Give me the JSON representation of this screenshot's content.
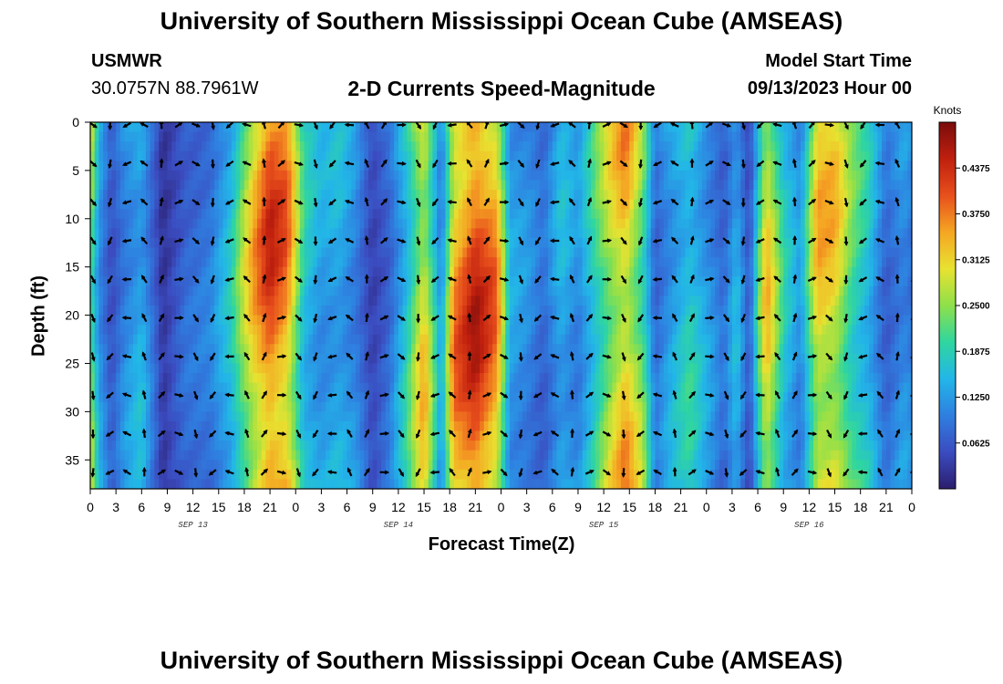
{
  "header": {
    "title": "University of Southern Mississippi Ocean Cube (AMSEAS)",
    "station": "USMWR",
    "coords": "30.0757N  88.7961W",
    "subtitle": "2-D Currents Speed-Magnitude",
    "model_label": "Model Start Time",
    "model_time": "09/13/2023 Hour 00"
  },
  "footer": {
    "title": "University of Southern Mississippi Ocean Cube (AMSEAS)"
  },
  "chart_data": {
    "type": "heatmap",
    "title": "2-D Currents Speed-Magnitude",
    "xlabel": "Forecast Time(Z)",
    "ylabel": "Depth (ft)",
    "x_ticks": [
      "0",
      "3",
      "6",
      "9",
      "12",
      "15",
      "18",
      "21",
      "0",
      "3",
      "6",
      "9",
      "12",
      "15",
      "18",
      "21",
      "0",
      "3",
      "6",
      "9",
      "12",
      "15",
      "18",
      "21",
      "0",
      "3",
      "6",
      "9",
      "12",
      "15",
      "18",
      "21",
      "0"
    ],
    "x_day_labels": [
      {
        "label": "SEP 13",
        "hour": 12
      },
      {
        "label": "SEP 14",
        "hour": 36
      },
      {
        "label": "SEP 15",
        "hour": 60
      },
      {
        "label": "SEP 16",
        "hour": 84
      }
    ],
    "xlim_hours": [
      0,
      96
    ],
    "y_ticks": [
      0,
      5,
      10,
      15,
      20,
      25,
      30,
      35
    ],
    "ylim_ft": [
      0,
      38
    ],
    "colorbar": {
      "label": "Knots",
      "range": [
        0,
        0.5
      ],
      "ticks": [
        "0.4375",
        "0.3750",
        "0.3125",
        "0.2500",
        "0.1875",
        "0.1250",
        "0.0625"
      ],
      "tick_values": [
        0.4375,
        0.375,
        0.3125,
        0.25,
        0.1875,
        0.125,
        0.0625
      ],
      "colors": [
        "#2b1e6e",
        "#3b4cc0",
        "#2f7fe0",
        "#22b6e8",
        "#2fd6a0",
        "#8ee04a",
        "#e8e230",
        "#f5a623",
        "#e8501c",
        "#c0200e",
        "#7a0c0c"
      ]
    },
    "arrow_depths_ft": [
      0,
      4,
      8,
      12,
      16,
      20,
      24,
      28,
      32,
      36
    ],
    "arrow_step_hours": 2,
    "speed_profile_by_hour": [
      {
        "hour": 0,
        "speed": 0.3
      },
      {
        "hour": 1,
        "speed": 0.15
      },
      {
        "hour": 2.5,
        "speed": 0.07
      },
      {
        "hour": 4,
        "speed": 0.13
      },
      {
        "hour": 6,
        "speed": 0.17
      },
      {
        "hour": 8.5,
        "speed": 0.03
      },
      {
        "hour": 11,
        "speed": 0.09
      },
      {
        "hour": 14,
        "speed": 0.11
      },
      {
        "hour": 16.5,
        "speed": 0.19
      },
      {
        "hour": 19,
        "speed": 0.36
      },
      {
        "hour": 21,
        "speed": 0.46
      },
      {
        "hour": 23,
        "speed": 0.41
      },
      {
        "hour": 25,
        "speed": 0.2
      },
      {
        "hour": 27,
        "speed": 0.15
      },
      {
        "hour": 29,
        "speed": 0.17
      },
      {
        "hour": 31,
        "speed": 0.13
      },
      {
        "hour": 33,
        "speed": 0.05
      },
      {
        "hour": 35,
        "speed": 0.1
      },
      {
        "hour": 37,
        "speed": 0.21
      },
      {
        "hour": 39,
        "speed": 0.36
      },
      {
        "hour": 41,
        "speed": 0.13
      },
      {
        "hour": 42.5,
        "speed": 0.4
      },
      {
        "hour": 45,
        "speed": 0.48
      },
      {
        "hour": 47.5,
        "speed": 0.4
      },
      {
        "hour": 49,
        "speed": 0.15
      },
      {
        "hour": 51,
        "speed": 0.13
      },
      {
        "hour": 53,
        "speed": 0.09
      },
      {
        "hour": 55,
        "speed": 0.17
      },
      {
        "hour": 57,
        "speed": 0.13
      },
      {
        "hour": 59,
        "speed": 0.23
      },
      {
        "hour": 61,
        "speed": 0.33
      },
      {
        "hour": 62.5,
        "speed": 0.39
      },
      {
        "hour": 64.5,
        "speed": 0.28
      },
      {
        "hour": 66,
        "speed": 0.1
      },
      {
        "hour": 68,
        "speed": 0.16
      },
      {
        "hour": 70,
        "speed": 0.21
      },
      {
        "hour": 72,
        "speed": 0.15
      },
      {
        "hour": 74,
        "speed": 0.09
      },
      {
        "hour": 75.5,
        "speed": 0.17
      },
      {
        "hour": 77,
        "speed": 0.06
      },
      {
        "hour": 79,
        "speed": 0.36
      },
      {
        "hour": 81,
        "speed": 0.2
      },
      {
        "hour": 83,
        "speed": 0.13
      },
      {
        "hour": 85,
        "speed": 0.36
      },
      {
        "hour": 87,
        "speed": 0.35
      },
      {
        "hour": 89,
        "speed": 0.25
      },
      {
        "hour": 91,
        "speed": 0.19
      },
      {
        "hour": 93,
        "speed": 0.09
      },
      {
        "hour": 95,
        "speed": 0.14
      },
      {
        "hour": 96,
        "speed": 0.12
      }
    ]
  }
}
